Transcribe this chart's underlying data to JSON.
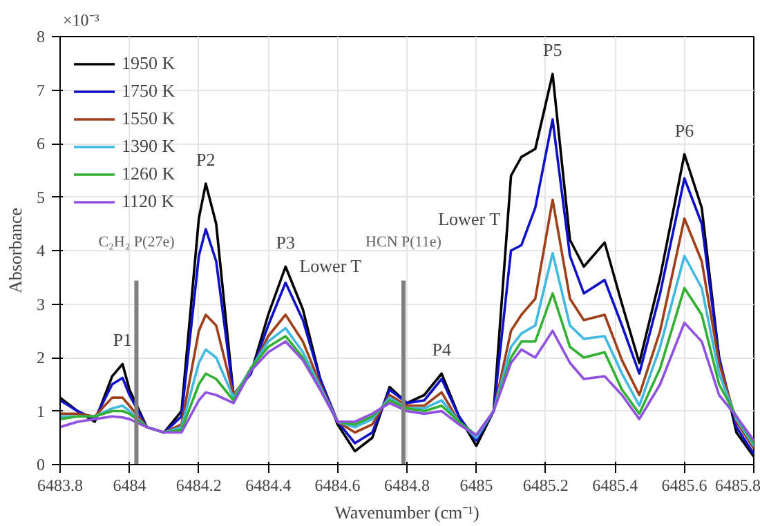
{
  "chart_data": {
    "type": "line",
    "xlabel": "Wavenumber (cm⁻¹)",
    "ylabel": "Absorbance",
    "x": [
      6483.8,
      6483.85,
      6483.9,
      6483.95,
      6483.98,
      6484.0,
      6484.05,
      6484.1,
      6484.15,
      6484.2,
      6484.22,
      6484.25,
      6484.3,
      6484.35,
      6484.4,
      6484.45,
      6484.5,
      6484.55,
      6484.6,
      6484.65,
      6484.7,
      6484.75,
      6484.8,
      6484.85,
      6484.9,
      6484.95,
      6485.0,
      6485.05,
      6485.1,
      6485.13,
      6485.17,
      6485.22,
      6485.27,
      6485.31,
      6485.37,
      6485.42,
      6485.47,
      6485.53,
      6485.6,
      6485.65,
      6485.7,
      6485.75,
      6485.8
    ],
    "series": [
      {
        "name": "1950 K",
        "color": "#000000",
        "values": [
          1.25,
          1.0,
          0.8,
          1.65,
          1.88,
          1.4,
          0.7,
          0.6,
          1.0,
          4.6,
          5.25,
          4.5,
          1.3,
          1.7,
          2.8,
          3.7,
          2.9,
          1.6,
          0.75,
          0.25,
          0.5,
          1.45,
          1.15,
          1.3,
          1.7,
          0.9,
          0.35,
          1.0,
          5.4,
          5.75,
          5.9,
          7.3,
          4.2,
          3.7,
          4.15,
          3.0,
          1.9,
          3.5,
          5.8,
          4.8,
          2.0,
          0.6,
          0.15
        ]
      },
      {
        "name": "1750 K",
        "color": "#1010c8",
        "values": [
          1.2,
          1.0,
          0.85,
          1.5,
          1.62,
          1.3,
          0.7,
          0.6,
          0.9,
          3.9,
          4.4,
          3.8,
          1.3,
          1.7,
          2.6,
          3.4,
          2.7,
          1.6,
          0.8,
          0.4,
          0.6,
          1.4,
          1.15,
          1.2,
          1.6,
          0.9,
          0.45,
          1.0,
          4.0,
          4.1,
          4.8,
          6.45,
          3.9,
          3.2,
          3.45,
          2.6,
          1.7,
          3.2,
          5.35,
          4.5,
          2.0,
          0.7,
          0.2
        ]
      },
      {
        "name": "1550 K",
        "color": "#a0401a",
        "values": [
          0.95,
          0.95,
          0.9,
          1.25,
          1.25,
          1.1,
          0.7,
          0.6,
          0.75,
          2.5,
          2.8,
          2.6,
          1.3,
          1.75,
          2.4,
          2.8,
          2.3,
          1.5,
          0.8,
          0.6,
          0.75,
          1.3,
          1.1,
          1.1,
          1.35,
          0.8,
          0.5,
          1.0,
          2.5,
          2.8,
          3.1,
          4.95,
          3.1,
          2.7,
          2.8,
          1.95,
          1.3,
          2.5,
          4.6,
          3.8,
          1.9,
          0.8,
          0.3
        ]
      },
      {
        "name": "1390 K",
        "color": "#40b8e0",
        "values": [
          0.9,
          0.9,
          0.9,
          1.05,
          1.1,
          1.0,
          0.7,
          0.6,
          0.7,
          1.9,
          2.15,
          2.0,
          1.25,
          1.8,
          2.3,
          2.55,
          2.1,
          1.45,
          0.8,
          0.7,
          0.85,
          1.25,
          1.05,
          1.05,
          1.2,
          0.8,
          0.5,
          1.0,
          2.2,
          2.45,
          2.6,
          3.95,
          2.6,
          2.35,
          2.4,
          1.7,
          1.1,
          2.2,
          3.9,
          3.3,
          1.7,
          0.85,
          0.35
        ]
      },
      {
        "name": "1260 K",
        "color": "#30b030",
        "values": [
          0.85,
          0.9,
          0.9,
          1.0,
          1.0,
          0.95,
          0.7,
          0.6,
          0.65,
          1.5,
          1.7,
          1.6,
          1.2,
          1.8,
          2.2,
          2.4,
          2.0,
          1.4,
          0.8,
          0.75,
          0.9,
          1.2,
          1.05,
          1.0,
          1.1,
          0.8,
          0.55,
          1.0,
          2.0,
          2.3,
          2.3,
          3.2,
          2.2,
          2.0,
          2.1,
          1.4,
          0.95,
          1.8,
          3.3,
          2.8,
          1.5,
          0.9,
          0.4
        ]
      },
      {
        "name": "1120 K",
        "color": "#9050e0",
        "values": [
          0.7,
          0.8,
          0.85,
          0.9,
          0.88,
          0.85,
          0.7,
          0.6,
          0.6,
          1.2,
          1.35,
          1.3,
          1.15,
          1.75,
          2.1,
          2.3,
          1.95,
          1.4,
          0.8,
          0.8,
          0.95,
          1.15,
          1.0,
          0.95,
          1.0,
          0.75,
          0.55,
          1.0,
          1.9,
          2.15,
          2.0,
          2.5,
          1.9,
          1.6,
          1.65,
          1.3,
          0.85,
          1.5,
          2.65,
          2.3,
          1.3,
          0.9,
          0.45
        ]
      }
    ],
    "xlim": [
      6483.8,
      6485.8
    ],
    "xticks": [
      6483.8,
      6484,
      6484.2,
      6484.4,
      6484.6,
      6484.8,
      6485,
      6485.2,
      6485.4,
      6485.6,
      6485.8
    ],
    "ylim": [
      0,
      8
    ],
    "yticks": [
      0,
      1,
      2,
      3,
      4,
      5,
      6,
      7,
      8
    ],
    "ref_lines": [
      {
        "axis": "x",
        "value": 6484.02,
        "label": "C₂H₂ P(27e)",
        "color": "#808080"
      },
      {
        "axis": "x",
        "value": 6484.79,
        "label": "HCN P(11e)",
        "color": "#808080"
      }
    ],
    "annotations": [
      "×10⁻³",
      {
        "text": "P1",
        "x": 6483.98,
        "y": 1.88
      },
      {
        "text": "P2",
        "x": 6484.22,
        "y": 5.25
      },
      {
        "text": "P3",
        "x": 6484.45,
        "y": 3.7
      },
      {
        "text": "P4",
        "x": 6484.9,
        "y": 1.7
      },
      {
        "text": "P5",
        "x": 6485.22,
        "y": 7.3
      },
      {
        "text": "P6",
        "x": 6485.6,
        "y": 5.8
      },
      "Lower T",
      "Lower T"
    ],
    "grid": true,
    "legend": "top left",
    "line_style": "solid",
    "marker": "none"
  }
}
